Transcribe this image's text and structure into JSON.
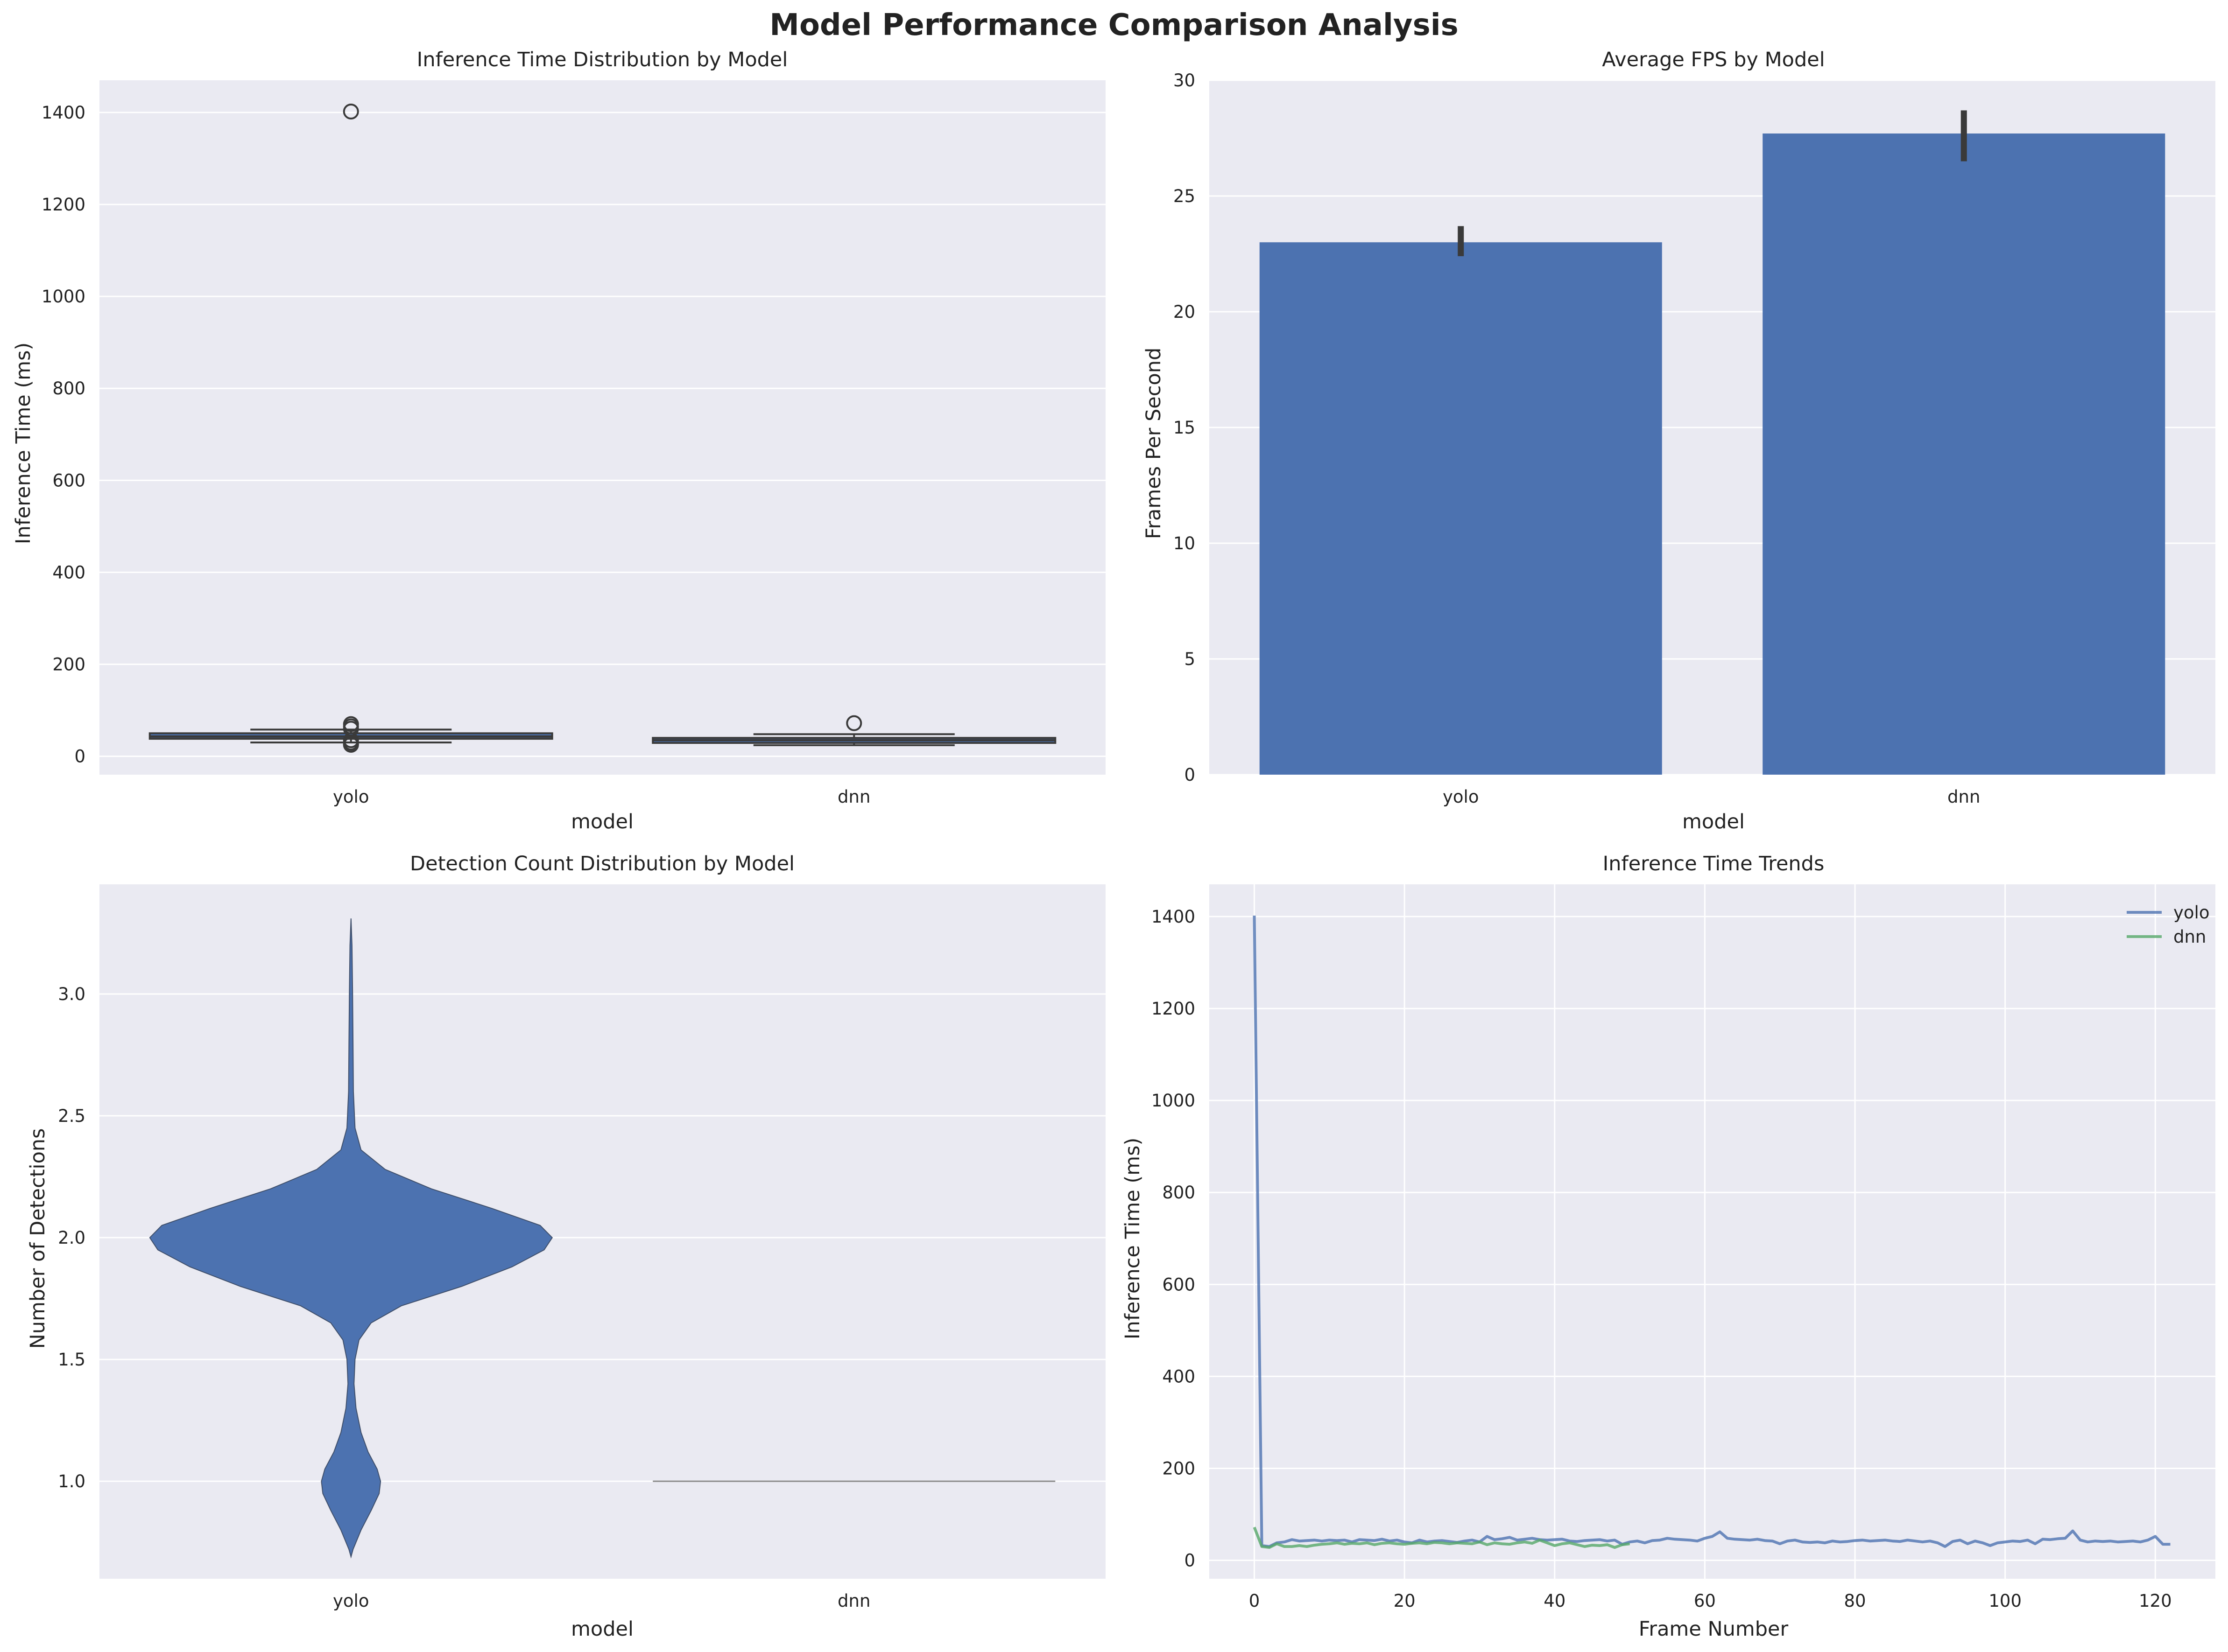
{
  "title": "Model Performance Comparison Analysis",
  "colors": {
    "background": "#eaeaf2",
    "grid": "#ffffff",
    "blue": "#4c72b0",
    "green": "#55a868",
    "errbar": "#3a3a3a"
  },
  "chart_data": [
    {
      "type": "box",
      "title": "Inference Time Distribution by Model",
      "xlabel": "model",
      "ylabel": "Inference Time (ms)",
      "categories": [
        "yolo",
        "dnn"
      ],
      "ylim": [
        -40,
        1470
      ],
      "yticks": [
        0,
        200,
        400,
        600,
        800,
        1000,
        1200,
        1400
      ],
      "boxes": [
        {
          "name": "yolo",
          "whislo": 30,
          "q1": 38,
          "med": 43,
          "q3": 50,
          "whishi": 58,
          "fliers": [
            1402,
            70,
            65,
            60,
            35,
            30,
            26,
            25
          ]
        },
        {
          "name": "dnn",
          "whislo": 24,
          "q1": 29,
          "med": 35,
          "q3": 40,
          "whishi": 48,
          "fliers": [
            72
          ]
        }
      ]
    },
    {
      "type": "bar",
      "title": "Average FPS by Model",
      "xlabel": "model",
      "ylabel": "Frames Per Second",
      "categories": [
        "yolo",
        "dnn"
      ],
      "values": [
        23.0,
        27.7
      ],
      "errors": [
        [
          22.4,
          23.7
        ],
        [
          26.5,
          28.7
        ]
      ],
      "ylim": [
        0,
        30
      ],
      "yticks": [
        0,
        5,
        10,
        15,
        20,
        25,
        30
      ]
    },
    {
      "type": "violin",
      "title": "Detection Count Distribution by Model",
      "xlabel": "model",
      "ylabel": "Number of Detections",
      "categories": [
        "yolo",
        "dnn"
      ],
      "ylim": [
        0.6,
        3.45
      ],
      "yticks": [
        1.0,
        1.5,
        2.0,
        2.5,
        3.0
      ],
      "violins": [
        {
          "name": "yolo",
          "profile": [
            [
              0.69,
              0.0
            ],
            [
              0.72,
              0.01
            ],
            [
              0.8,
              0.05
            ],
            [
              0.88,
              0.1
            ],
            [
              0.95,
              0.14
            ],
            [
              1.0,
              0.147
            ],
            [
              1.05,
              0.13
            ],
            [
              1.12,
              0.085
            ],
            [
              1.2,
              0.05
            ],
            [
              1.3,
              0.025
            ],
            [
              1.4,
              0.015
            ],
            [
              1.5,
              0.02
            ],
            [
              1.58,
              0.04
            ],
            [
              1.65,
              0.1
            ],
            [
              1.72,
              0.25
            ],
            [
              1.8,
              0.55
            ],
            [
              1.88,
              0.8
            ],
            [
              1.95,
              0.96
            ],
            [
              2.0,
              1.0
            ],
            [
              2.05,
              0.94
            ],
            [
              2.12,
              0.7
            ],
            [
              2.2,
              0.4
            ],
            [
              2.28,
              0.17
            ],
            [
              2.36,
              0.05
            ],
            [
              2.45,
              0.02
            ],
            [
              2.6,
              0.012
            ],
            [
              2.8,
              0.01
            ],
            [
              3.0,
              0.008
            ],
            [
              3.2,
              0.005
            ],
            [
              3.31,
              0.0
            ]
          ]
        },
        {
          "name": "dnn",
          "profile": [
            [
              1.0,
              1.0
            ]
          ]
        }
      ]
    },
    {
      "type": "line",
      "title": "Inference Time Trends",
      "xlabel": "Frame Number",
      "ylabel": "Inference Time (ms)",
      "xlim": [
        -6,
        128
      ],
      "ylim": [
        -40,
        1470
      ],
      "xticks": [
        0,
        20,
        40,
        60,
        80,
        100,
        120
      ],
      "yticks": [
        0,
        200,
        400,
        600,
        800,
        1000,
        1200,
        1400
      ],
      "legend_position": "upper right",
      "series": [
        {
          "name": "yolo",
          "color": "#4c72b0",
          "x0": 0,
          "values": [
            1402,
            32,
            30,
            38,
            40,
            45,
            42,
            43,
            44,
            42,
            44,
            43,
            44,
            40,
            45,
            44,
            43,
            46,
            42,
            44,
            40,
            38,
            44,
            40,
            42,
            43,
            41,
            39,
            42,
            44,
            40,
            52,
            45,
            47,
            50,
            44,
            46,
            48,
            45,
            44,
            45,
            46,
            42,
            41,
            43,
            44,
            45,
            42,
            44,
            35,
            40,
            42,
            38,
            43,
            44,
            48,
            46,
            45,
            44,
            42,
            48,
            52,
            62,
            48,
            46,
            45,
            44,
            46,
            43,
            42,
            36,
            42,
            44,
            40,
            39,
            40,
            38,
            42,
            40,
            41,
            43,
            44,
            42,
            43,
            44,
            42,
            41,
            44,
            42,
            40,
            42,
            38,
            30,
            41,
            44,
            36,
            42,
            38,
            32,
            38,
            40,
            42,
            41,
            44,
            36,
            46,
            45,
            47,
            48,
            64,
            44,
            40,
            42,
            41,
            42,
            40,
            41,
            42,
            40,
            44,
            52,
            35,
            35
          ]
        },
        {
          "name": "dnn",
          "color": "#55a868",
          "x0": 0,
          "values": [
            72,
            30,
            28,
            36,
            30,
            30,
            32,
            30,
            33,
            35,
            36,
            38,
            35,
            37,
            36,
            38,
            34,
            37,
            38,
            36,
            35,
            37,
            38,
            36,
            39,
            38,
            36,
            38,
            37,
            36,
            40,
            34,
            38,
            36,
            35,
            38,
            40,
            37,
            44,
            38,
            32,
            36,
            38,
            34,
            30,
            33,
            32,
            34,
            28,
            34,
            36
          ]
        }
      ]
    }
  ]
}
